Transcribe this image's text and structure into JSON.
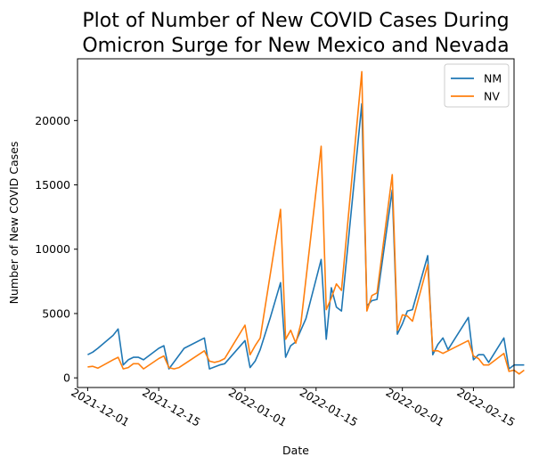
{
  "chart_data": {
    "type": "line",
    "title_lines": [
      "Plot of Number of New COVID Cases During",
      "Omicron Surge for New Mexico and Nevada"
    ],
    "xlabel": "Date",
    "ylabel": "Number of New COVID Cases",
    "x_ticks": [
      "2021-12-01",
      "2021-12-15",
      "2022-01-01",
      "2022-01-15",
      "2022-02-01",
      "2022-02-15"
    ],
    "y_ticks": [
      0,
      5000,
      10000,
      15000,
      20000
    ],
    "xlim": [
      "2021-11-29",
      "2022-02-23"
    ],
    "ylim": [
      -750,
      24800
    ],
    "legend_position": "top-right",
    "series": [
      {
        "name": "NM",
        "color": "#1f77b4",
        "points": [
          [
            "2021-12-01",
            1800
          ],
          [
            "2021-12-02",
            2000
          ],
          [
            "2021-12-03",
            2300
          ],
          [
            "2021-12-06",
            3300
          ],
          [
            "2021-12-07",
            3800
          ],
          [
            "2021-12-08",
            1000
          ],
          [
            "2021-12-09",
            1400
          ],
          [
            "2021-12-10",
            1600
          ],
          [
            "2021-12-11",
            1600
          ],
          [
            "2021-12-12",
            1400
          ],
          [
            "2021-12-15",
            2300
          ],
          [
            "2021-12-16",
            2500
          ],
          [
            "2021-12-17",
            700
          ],
          [
            "2021-12-20",
            2300
          ],
          [
            "2021-12-24",
            3100
          ],
          [
            "2021-12-25",
            700
          ],
          [
            "2021-12-27",
            1000
          ],
          [
            "2021-12-28",
            1100
          ],
          [
            "2022-01-01",
            2900
          ],
          [
            "2022-01-02",
            800
          ],
          [
            "2022-01-03",
            1300
          ],
          [
            "2022-01-04",
            2200
          ],
          [
            "2022-01-06",
            4700
          ],
          [
            "2022-01-08",
            7400
          ],
          [
            "2022-01-09",
            1600
          ],
          [
            "2022-01-10",
            2500
          ],
          [
            "2022-01-11",
            2800
          ],
          [
            "2022-01-12",
            3700
          ],
          [
            "2022-01-13",
            4600
          ],
          [
            "2022-01-16",
            9200
          ],
          [
            "2022-01-17",
            3000
          ],
          [
            "2022-01-18",
            7000
          ],
          [
            "2022-01-19",
            5500
          ],
          [
            "2022-01-20",
            5200
          ],
          [
            "2022-01-24",
            21300
          ],
          [
            "2022-01-25",
            5600
          ],
          [
            "2022-01-26",
            6000
          ],
          [
            "2022-01-27",
            6100
          ],
          [
            "2022-01-30",
            14600
          ],
          [
            "2022-01-31",
            3400
          ],
          [
            "2022-02-01",
            4200
          ],
          [
            "2022-02-02",
            5200
          ],
          [
            "2022-02-03",
            5300
          ],
          [
            "2022-02-06",
            9500
          ],
          [
            "2022-02-07",
            1800
          ],
          [
            "2022-02-08",
            2600
          ],
          [
            "2022-02-09",
            3100
          ],
          [
            "2022-02-10",
            2200
          ],
          [
            "2022-02-14",
            4700
          ],
          [
            "2022-02-15",
            1400
          ],
          [
            "2022-02-16",
            1800
          ],
          [
            "2022-02-17",
            1800
          ],
          [
            "2022-02-18",
            1200
          ],
          [
            "2022-02-21",
            3100
          ],
          [
            "2022-02-22",
            700
          ],
          [
            "2022-02-23",
            1000
          ],
          [
            "2022-02-25",
            1000
          ]
        ]
      },
      {
        "name": "NV",
        "color": "#ff7f0e",
        "points": [
          [
            "2021-12-01",
            850
          ],
          [
            "2021-12-02",
            900
          ],
          [
            "2021-12-03",
            750
          ],
          [
            "2021-12-06",
            1400
          ],
          [
            "2021-12-07",
            1600
          ],
          [
            "2021-12-08",
            700
          ],
          [
            "2021-12-09",
            800
          ],
          [
            "2021-12-10",
            1100
          ],
          [
            "2021-12-11",
            1100
          ],
          [
            "2021-12-12",
            700
          ],
          [
            "2021-12-15",
            1500
          ],
          [
            "2021-12-16",
            1700
          ],
          [
            "2021-12-17",
            800
          ],
          [
            "2021-12-18",
            700
          ],
          [
            "2021-12-19",
            800
          ],
          [
            "2021-12-24",
            2100
          ],
          [
            "2021-12-25",
            1300
          ],
          [
            "2021-12-26",
            1200
          ],
          [
            "2021-12-27",
            1300
          ],
          [
            "2021-12-28",
            1500
          ],
          [
            "2022-01-01",
            4100
          ],
          [
            "2022-01-02",
            1800
          ],
          [
            "2022-01-03",
            2500
          ],
          [
            "2022-01-04",
            3100
          ],
          [
            "2022-01-08",
            13100
          ],
          [
            "2022-01-09",
            3000
          ],
          [
            "2022-01-10",
            3700
          ],
          [
            "2022-01-11",
            2700
          ],
          [
            "2022-01-12",
            4200
          ],
          [
            "2022-01-16",
            18000
          ],
          [
            "2022-01-17",
            5300
          ],
          [
            "2022-01-18",
            6200
          ],
          [
            "2022-01-19",
            7300
          ],
          [
            "2022-01-20",
            6800
          ],
          [
            "2022-01-24",
            23800
          ],
          [
            "2022-01-25",
            5200
          ],
          [
            "2022-01-26",
            6400
          ],
          [
            "2022-01-27",
            6600
          ],
          [
            "2022-01-30",
            15800
          ],
          [
            "2022-01-31",
            3700
          ],
          [
            "2022-02-01",
            4900
          ],
          [
            "2022-02-02",
            4800
          ],
          [
            "2022-02-03",
            4400
          ],
          [
            "2022-02-06",
            8800
          ],
          [
            "2022-02-07",
            2100
          ],
          [
            "2022-02-08",
            2100
          ],
          [
            "2022-02-09",
            1900
          ],
          [
            "2022-02-10",
            2100
          ],
          [
            "2022-02-14",
            2900
          ],
          [
            "2022-02-15",
            1700
          ],
          [
            "2022-02-16",
            1500
          ],
          [
            "2022-02-17",
            1000
          ],
          [
            "2022-02-18",
            1000
          ],
          [
            "2022-02-21",
            1900
          ],
          [
            "2022-02-22",
            500
          ],
          [
            "2022-02-23",
            600
          ],
          [
            "2022-02-24",
            300
          ],
          [
            "2022-02-25",
            600
          ]
        ]
      }
    ]
  }
}
